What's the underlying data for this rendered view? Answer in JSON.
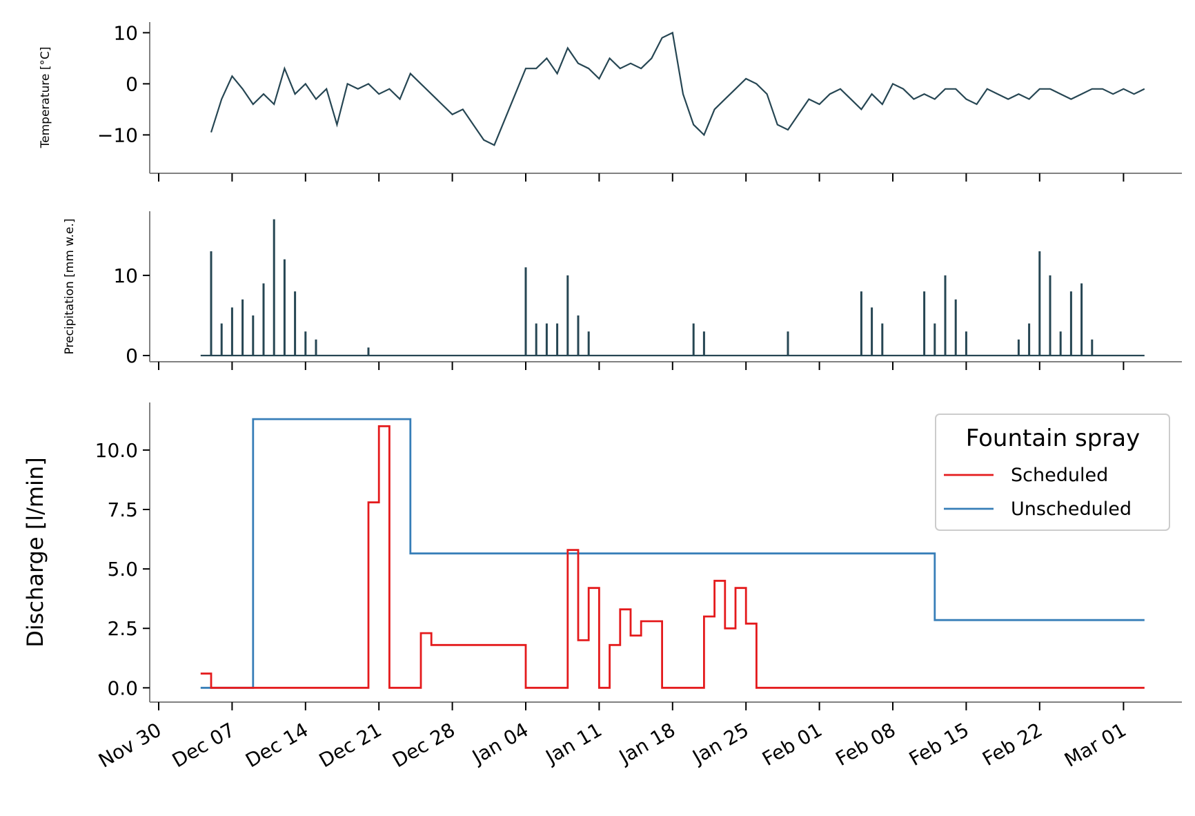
{
  "colors": {
    "temperature": "#264653",
    "precipitation": "#264653",
    "scheduled": "#e41a1c",
    "unscheduled": "#377eb8"
  },
  "chart_data": [
    {
      "type": "line",
      "ylabel": "Temperature [°C]",
      "ylim": [
        -14,
        11
      ],
      "yticks": [
        10,
        0,
        -10
      ],
      "ytick_labels": [
        "10",
        "0",
        "−10"
      ],
      "grid": false,
      "series": [
        {
          "x": [
            "2019-12-05",
            "2019-12-06",
            "2019-12-07",
            "2019-12-08",
            "2019-12-09",
            "2019-12-10",
            "2019-12-11",
            "2019-12-12",
            "2019-12-13",
            "2019-12-14",
            "2019-12-15",
            "2019-12-16",
            "2019-12-17",
            "2019-12-18",
            "2019-12-19",
            "2019-12-20",
            "2019-12-21",
            "2019-12-22",
            "2019-12-23",
            "2019-12-24",
            "2019-12-25",
            "2019-12-26",
            "2019-12-27",
            "2019-12-28",
            "2019-12-29",
            "2019-12-30",
            "2019-12-31",
            "2020-01-01",
            "2020-01-02",
            "2020-01-03",
            "2020-01-04",
            "2020-01-05",
            "2020-01-06",
            "2020-01-07",
            "2020-01-08",
            "2020-01-09",
            "2020-01-10",
            "2020-01-11",
            "2020-01-12",
            "2020-01-13",
            "2020-01-14",
            "2020-01-15",
            "2020-01-16",
            "2020-01-17",
            "2020-01-18",
            "2020-01-19",
            "2020-01-20",
            "2020-01-21",
            "2020-01-22",
            "2020-01-23",
            "2020-01-24",
            "2020-01-25",
            "2020-01-26",
            "2020-01-27",
            "2020-01-28",
            "2020-01-29",
            "2020-01-30",
            "2020-01-31",
            "2020-02-01",
            "2020-02-02",
            "2020-02-03",
            "2020-02-04",
            "2020-02-05",
            "2020-02-06",
            "2020-02-07",
            "2020-02-08",
            "2020-02-09",
            "2020-02-10",
            "2020-02-11",
            "2020-02-12",
            "2020-02-13",
            "2020-02-14",
            "2020-02-15",
            "2020-02-16",
            "2020-02-17",
            "2020-02-18",
            "2020-02-19",
            "2020-02-20",
            "2020-02-21",
            "2020-02-22",
            "2020-02-23",
            "2020-02-24",
            "2020-02-25",
            "2020-02-26",
            "2020-02-27",
            "2020-02-28",
            "2020-02-29",
            "2020-03-01",
            "2020-03-02",
            "2020-03-03"
          ],
          "values": [
            -9.5,
            -3,
            1.5,
            -1,
            -4,
            -2,
            -4,
            3,
            -2,
            0,
            -3,
            -1,
            -8,
            0,
            -1,
            0,
            -2,
            -1,
            -3,
            2,
            0,
            -2,
            -4,
            -6,
            -5,
            -8,
            -11,
            -12,
            -7,
            -2,
            3,
            3,
            5,
            2,
            7,
            4,
            3,
            1,
            5,
            3,
            4,
            3,
            5,
            9,
            10,
            -2,
            -8,
            -10,
            -5,
            -3,
            -1,
            1,
            0,
            -2,
            -8,
            -9,
            -6,
            -3,
            -4,
            -2,
            -1,
            -3,
            -5,
            -2,
            -4,
            0,
            -1,
            -3,
            -2,
            -3,
            -1,
            -1,
            -3,
            -4,
            -1,
            -2,
            -3,
            -2,
            -3,
            -1,
            -1,
            -2,
            -3,
            -2,
            -1,
            -1,
            -2,
            -1,
            -2,
            -1
          ]
        }
      ]
    },
    {
      "type": "bar",
      "ylabel": "Precipitation [mm w.e.]",
      "ylim": [
        0,
        18
      ],
      "yticks": [
        10,
        0
      ],
      "ytick_labels": [
        "10",
        "0"
      ],
      "grid": false,
      "series": [
        {
          "x": [
            "2019-12-05",
            "2019-12-06",
            "2019-12-07",
            "2019-12-08",
            "2019-12-09",
            "2019-12-10",
            "2019-12-11",
            "2019-12-12",
            "2019-12-13",
            "2019-12-14",
            "2019-12-15",
            "2019-12-20",
            "2020-01-04",
            "2020-01-05",
            "2020-01-06",
            "2020-01-07",
            "2020-01-08",
            "2020-01-09",
            "2020-01-10",
            "2020-01-20",
            "2020-01-21",
            "2020-01-29",
            "2020-02-05",
            "2020-02-06",
            "2020-02-07",
            "2020-02-11",
            "2020-02-12",
            "2020-02-13",
            "2020-02-14",
            "2020-02-15",
            "2020-02-20",
            "2020-02-21",
            "2020-02-22",
            "2020-02-23",
            "2020-02-24",
            "2020-02-25",
            "2020-02-26",
            "2020-02-27"
          ],
          "values": [
            13,
            4,
            6,
            7,
            5,
            9,
            17,
            12,
            8,
            3,
            2,
            1,
            11,
            4,
            4,
            4,
            10,
            5,
            3,
            4,
            3,
            3,
            8,
            6,
            4,
            8,
            4,
            10,
            7,
            3,
            2,
            4,
            13,
            10,
            3,
            8,
            9,
            2
          ]
        }
      ]
    },
    {
      "type": "line",
      "ylabel": "Discharge [l/min]",
      "ylim": [
        -0.6,
        12
      ],
      "yticks": [
        0,
        2.5,
        5,
        7.5,
        10
      ],
      "ytick_labels": [
        "0.0",
        "2.5",
        "5.0",
        "7.5",
        "10.0"
      ],
      "xtick_labels": [
        "Nov 30",
        "Dec 07",
        "Dec 14",
        "Dec 21",
        "Dec 28",
        "Jan 04",
        "Jan 11",
        "Jan 18",
        "Jan 25",
        "Feb 01",
        "Feb 08",
        "Feb 15",
        "Feb 22",
        "Mar 01"
      ],
      "xticks": [
        "2019-11-30",
        "2019-12-07",
        "2019-12-14",
        "2019-12-21",
        "2019-12-28",
        "2020-01-04",
        "2020-01-11",
        "2020-01-18",
        "2020-01-25",
        "2020-02-01",
        "2020-02-08",
        "2020-02-15",
        "2020-02-22",
        "2020-03-01"
      ],
      "legend": {
        "title": "Fountain spray",
        "position": "top-right"
      },
      "series": [
        {
          "name": "Scheduled",
          "x": [
            "2019-12-04",
            "2019-12-05",
            "2019-12-10",
            "2019-12-19",
            "2019-12-20",
            "2019-12-21",
            "2019-12-22",
            "2019-12-23",
            "2019-12-24",
            "2019-12-25",
            "2019-12-26",
            "2019-12-27",
            "2019-12-28",
            "2019-12-31",
            "2020-01-01",
            "2020-01-02",
            "2020-01-03",
            "2020-01-04",
            "2020-01-05",
            "2020-01-06",
            "2020-01-07",
            "2020-01-08",
            "2020-01-09",
            "2020-01-10",
            "2020-01-11",
            "2020-01-12",
            "2020-01-13",
            "2020-01-14",
            "2020-01-15",
            "2020-01-16",
            "2020-01-17",
            "2020-01-18",
            "2020-01-19",
            "2020-01-20",
            "2020-01-21",
            "2020-01-22",
            "2020-01-23",
            "2020-01-24",
            "2020-01-25",
            "2020-01-26",
            "2020-03-03"
          ],
          "values": [
            0.6,
            0,
            0,
            0,
            7.8,
            11,
            0,
            0,
            0,
            2.3,
            1.8,
            1.8,
            1.8,
            1.8,
            1.8,
            1.8,
            1.8,
            0,
            0,
            0,
            0,
            5.8,
            2,
            4.2,
            0,
            1.8,
            3.3,
            2.2,
            2.8,
            2.8,
            0,
            0,
            0,
            0,
            3,
            4.5,
            2.5,
            4.2,
            2.7,
            0,
            0
          ]
        },
        {
          "name": "Unscheduled",
          "x": [
            "2019-12-04",
            "2019-12-09",
            "2019-12-24",
            "2020-02-12",
            "2020-03-03"
          ],
          "values": [
            0,
            11.3,
            5.65,
            2.85,
            2.85
          ]
        }
      ]
    }
  ]
}
